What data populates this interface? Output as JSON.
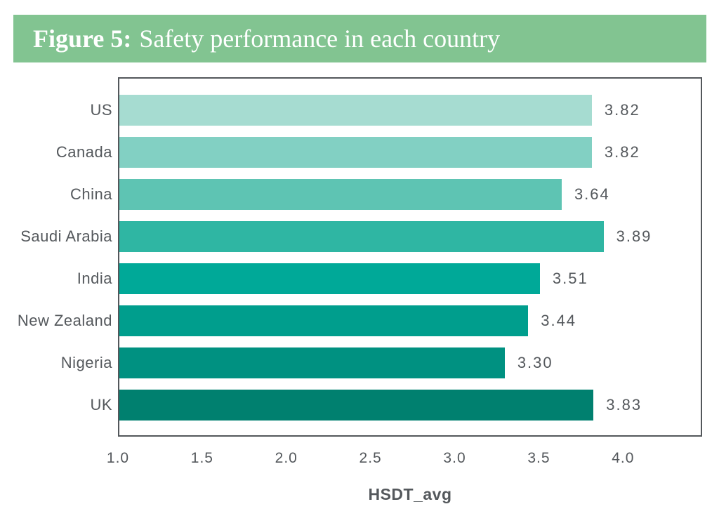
{
  "figure": {
    "label": "Figure 5:",
    "title": "Safety performance in each country",
    "banner_color": "#82c491",
    "banner_text_color": "#ffffff"
  },
  "chart_data": {
    "type": "bar",
    "orientation": "horizontal",
    "title": "Safety performance in each country",
    "categories": [
      "US",
      "Canada",
      "China",
      "Saudi Arabia",
      "India",
      "New Zealand",
      "Nigeria",
      "UK"
    ],
    "values": [
      3.82,
      3.82,
      3.64,
      3.89,
      3.51,
      3.44,
      3.3,
      3.83
    ],
    "value_labels": [
      "3.82",
      "3.82",
      "3.64",
      "3.89",
      "3.51",
      "3.44",
      "3.30",
      "3.83"
    ],
    "bar_colors": [
      "#a6dcd1",
      "#82d0c3",
      "#5ec4b3",
      "#2fb6a3",
      "#00a998",
      "#009e8d",
      "#009181",
      "#00806f"
    ],
    "xlabel": "HSDT_avg",
    "x_ticks": [
      "1.0",
      "1.5",
      "2.0",
      "2.5",
      "3.0",
      "3.5",
      "4.0"
    ],
    "x_tick_values": [
      1.0,
      1.5,
      2.0,
      2.5,
      3.0,
      3.5,
      4.0
    ],
    "xlim": [
      1.0,
      4.47
    ],
    "grid": false,
    "legend": false,
    "axis_border_color": "#53575b",
    "text_color": "#54585c"
  }
}
